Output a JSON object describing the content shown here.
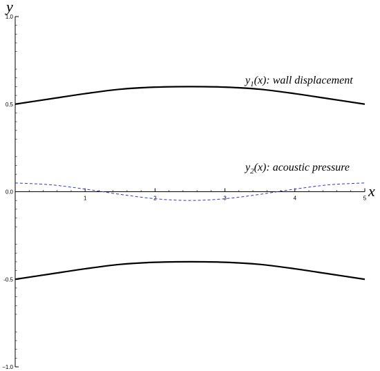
{
  "chart_data": {
    "type": "line",
    "title": "",
    "xlabel": "x",
    "ylabel": "y",
    "xlim": [
      0,
      5
    ],
    "ylim": [
      -1.0,
      1.0
    ],
    "x_ticks": [
      1,
      2,
      3,
      4,
      5
    ],
    "x_tick_labels": [
      "1",
      "2",
      "3",
      "4",
      "5"
    ],
    "y_ticks": [
      1.0,
      0.5,
      0.0,
      -0.5,
      -1.0
    ],
    "y_tick_labels": [
      "1.0",
      "0.5",
      "0.0",
      "-0.5",
      "−1.0"
    ],
    "grid": false,
    "legend": "none",
    "series": [
      {
        "color": "#000000",
        "style": "solid",
        "x": [
          0,
          0.5,
          1,
          1.5,
          2,
          2.5,
          3,
          3.5,
          4,
          4.5,
          5
        ],
        "values": [
          0.5,
          0.53,
          0.56,
          0.585,
          0.597,
          0.6,
          0.597,
          0.585,
          0.56,
          0.53,
          0.5
        ]
      },
      {
        "color": "#000000",
        "style": "solid",
        "x": [
          0,
          0.5,
          1,
          1.5,
          2,
          2.5,
          3,
          3.5,
          4,
          4.5,
          5
        ],
        "values": [
          -0.5,
          -0.47,
          -0.44,
          -0.415,
          -0.403,
          -0.4,
          -0.403,
          -0.415,
          -0.44,
          -0.47,
          -0.5
        ]
      },
      {
        "color": "#3333cc",
        "style": "dashed",
        "x": [
          0,
          0.5,
          1,
          1.5,
          2,
          2.5,
          3,
          3.5,
          4,
          4.5,
          5
        ],
        "values": [
          0.05,
          0.04,
          0.015,
          -0.015,
          -0.04,
          -0.05,
          -0.04,
          -0.015,
          0.015,
          0.04,
          0.05
        ]
      }
    ],
    "annotations": [
      {
        "main": "y",
        "sub": "1",
        "rest": "(x): wall displacement"
      },
      {
        "main": "y",
        "sub": "2",
        "rest": "(x): acoustic pressure"
      }
    ]
  }
}
